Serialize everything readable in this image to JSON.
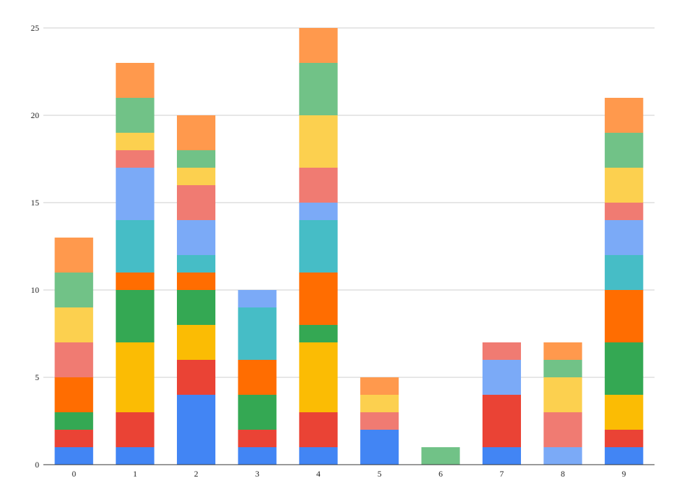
{
  "chart_data": {
    "type": "bar",
    "stacked": true,
    "title": "",
    "xlabel": "",
    "ylabel": "",
    "categories": [
      "0",
      "1",
      "2",
      "3",
      "4",
      "5",
      "6",
      "7",
      "8",
      "9"
    ],
    "ylim": [
      0,
      25
    ],
    "yticks": [
      0,
      5,
      10,
      15,
      20,
      25
    ],
    "grid": true,
    "legend": "none",
    "series": [
      {
        "color": "#4285f4",
        "values": [
          1,
          1,
          4,
          1,
          1,
          2,
          0,
          1,
          0,
          1
        ]
      },
      {
        "color": "#ea4335",
        "values": [
          1,
          2,
          2,
          1,
          2,
          0,
          0,
          3,
          0,
          1
        ]
      },
      {
        "color": "#fbbc04",
        "values": [
          0,
          4,
          2,
          0,
          4,
          0,
          0,
          0,
          0,
          2
        ]
      },
      {
        "color": "#34a853",
        "values": [
          1,
          3,
          2,
          2,
          1,
          0,
          0,
          0,
          0,
          3
        ]
      },
      {
        "color": "#ff6d01",
        "values": [
          2,
          1,
          1,
          2,
          3,
          0,
          0,
          0,
          0,
          3
        ]
      },
      {
        "color": "#46bdc6",
        "values": [
          0,
          3,
          1,
          3,
          3,
          0,
          0,
          0,
          0,
          2
        ]
      },
      {
        "color": "#7baaf7",
        "values": [
          0,
          3,
          2,
          1,
          1,
          0,
          0,
          2,
          1,
          2
        ]
      },
      {
        "color": "#f07b72",
        "values": [
          2,
          1,
          2,
          0,
          2,
          1,
          0,
          1,
          2,
          1
        ]
      },
      {
        "color": "#fcd04f",
        "values": [
          2,
          1,
          1,
          0,
          3,
          1,
          0,
          0,
          2,
          2
        ]
      },
      {
        "color": "#71c287",
        "values": [
          2,
          2,
          1,
          0,
          3,
          0,
          1,
          0,
          1,
          2
        ]
      },
      {
        "color": "#ff994d",
        "values": [
          2,
          2,
          2,
          0,
          2,
          1,
          0,
          0,
          1,
          2
        ]
      }
    ]
  }
}
